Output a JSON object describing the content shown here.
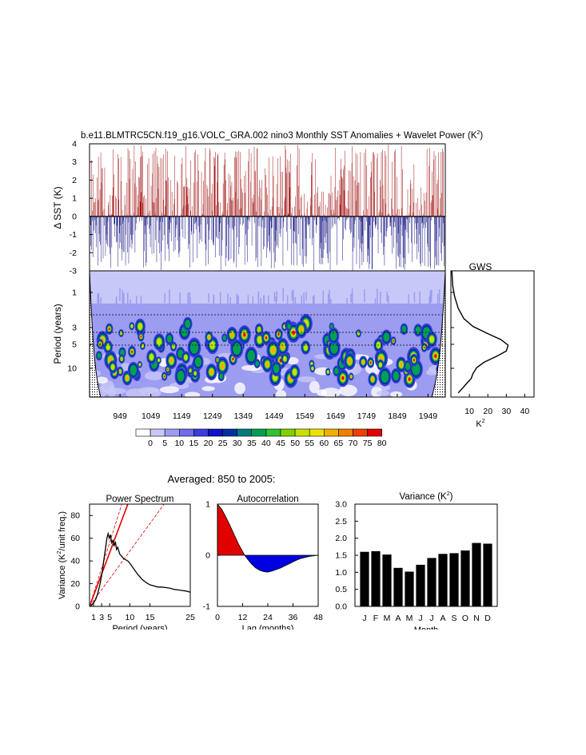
{
  "title": "b.e11.BLMTRC5CN.f19_g16.VOLC_GRA.002 nino3 Monthly SST Anomalies + Wavelet Power (K",
  "title_sup": "2",
  "title_end": ")",
  "colors": {
    "positive": "#a01010",
    "negative": "#101080",
    "spectrum_line": "#000000",
    "red_line": "#e00000",
    "bar": "#000000"
  },
  "chart_data": [
    {
      "id": "sst_anomaly",
      "type": "bar",
      "ylabel": "Δ SST (K)",
      "ylim": [
        -3,
        4
      ],
      "yticks": [
        "4",
        "3",
        "2",
        "1",
        "0",
        "-1",
        "-2",
        "-3"
      ],
      "xlim": [
        850,
        2005
      ],
      "description_values": "monthly anomalies, positive red, negative blue"
    },
    {
      "id": "wavelet",
      "type": "heatmap",
      "ylabel": "Period (years)",
      "yticks": [
        "1",
        "3",
        "5",
        "10"
      ],
      "xticks": [
        "949",
        "1049",
        "1149",
        "1249",
        "1349",
        "1449",
        "1549",
        "1649",
        "1749",
        "1849",
        "1949"
      ],
      "colorbar_labels": [
        "0",
        "5",
        "10",
        "15",
        "20",
        "25",
        "30",
        "35",
        "40",
        "45",
        "50",
        "55",
        "60",
        "65",
        "70",
        "75",
        "80"
      ],
      "colorbar_colors": [
        "#ffffff",
        "#c8c8f8",
        "#9c9cf0",
        "#6e6ee8",
        "#3c3ce0",
        "#1010c8",
        "#0030a0",
        "#007a7a",
        "#00a050",
        "#30c030",
        "#80d000",
        "#c8e000",
        "#f0e000",
        "#f0b000",
        "#f08000",
        "#f04000",
        "#e00000"
      ]
    },
    {
      "id": "gws",
      "type": "line",
      "title": "GWS",
      "xlabel": "K",
      "xlabel_sup": "2",
      "xticks": [
        "10",
        "20",
        "30",
        "40"
      ],
      "xlim": [
        0,
        45
      ],
      "x": [
        0.5,
        1,
        2,
        4,
        7,
        12,
        20,
        27,
        31,
        30,
        25,
        18,
        14,
        12,
        11,
        8,
        4
      ],
      "y_period": [
        0.5,
        0.8,
        1.1,
        1.6,
        2.2,
        2.8,
        3.5,
        4.2,
        5.0,
        6.0,
        7.0,
        8.5,
        10,
        12,
        14,
        17,
        22
      ]
    },
    {
      "id": "power_spectrum",
      "type": "line",
      "title": "Power Spectrum",
      "xlabel": "Period (years)",
      "ylabel": "Variance (K",
      "ylabel_sup": "2",
      "ylabel_end": "/unit freq.)",
      "xlim": [
        0,
        25
      ],
      "ylim": [
        0,
        90
      ],
      "xticks": [
        "1",
        "3",
        "5",
        "10",
        "15",
        "25"
      ],
      "xtick_values": [
        1,
        3,
        5,
        10,
        15,
        25
      ],
      "yticks": [
        "0",
        "20",
        "40",
        "60",
        "80"
      ],
      "series": [
        {
          "name": "spectrum",
          "x": [
            0.3,
            0.6,
            1.0,
            1.5,
            2.0,
            2.5,
            3.0,
            3.3,
            3.6,
            4.0,
            4.3,
            4.6,
            4.9,
            5.2,
            5.5,
            5.8,
            6.1,
            6.4,
            6.7,
            7.0,
            7.5,
            8.0,
            8.5,
            9.0,
            9.5,
            10,
            11,
            12,
            13,
            14,
            15,
            16,
            17,
            18,
            19,
            20,
            21,
            22,
            23,
            24,
            25
          ],
          "y": [
            0.5,
            1.5,
            3,
            6,
            11,
            18,
            27,
            34,
            42,
            52,
            60,
            64,
            60,
            63,
            56,
            58,
            53,
            57,
            50,
            52,
            46,
            44,
            42,
            41,
            40,
            38,
            33,
            28,
            24,
            21,
            19,
            18,
            17,
            17,
            16.5,
            16,
            15,
            14.5,
            14,
            13.5,
            12.5
          ]
        },
        {
          "name": "red-noise",
          "x": [
            0,
            9.5
          ],
          "y": [
            0,
            90
          ]
        },
        {
          "name": "red-noise-upper",
          "x": [
            0,
            8.0
          ],
          "y": [
            0,
            90
          ]
        },
        {
          "name": "red-noise-lower",
          "x": [
            0,
            18.5
          ],
          "y": [
            0,
            90
          ]
        }
      ]
    },
    {
      "id": "autocorrelation",
      "type": "area",
      "title": "Autocorrelation",
      "xlabel": "Lag (months)",
      "xlim": [
        0,
        48
      ],
      "ylim": [
        -1,
        1
      ],
      "xticks": [
        "0",
        "12",
        "24",
        "36",
        "48"
      ],
      "yticks": [
        "1",
        "0",
        "-1"
      ],
      "x": [
        0,
        2,
        4,
        6,
        8,
        10,
        12,
        13,
        14,
        16,
        18,
        20,
        22,
        24,
        26,
        28,
        30,
        32,
        34,
        36,
        38,
        40,
        42,
        44,
        46,
        48
      ],
      "y": [
        1.0,
        0.9,
        0.75,
        0.58,
        0.4,
        0.22,
        0.07,
        0.0,
        -0.06,
        -0.16,
        -0.24,
        -0.29,
        -0.32,
        -0.33,
        -0.31,
        -0.28,
        -0.25,
        -0.21,
        -0.17,
        -0.13,
        -0.09,
        -0.06,
        -0.04,
        -0.02,
        -0.01,
        0.0
      ]
    },
    {
      "id": "variance",
      "type": "bar",
      "title": "Variance (K",
      "title_sup": "2",
      "title_end": ")",
      "xlabel": "Month",
      "ylim": [
        0,
        3.0
      ],
      "yticks": [
        "3.0",
        "2.5",
        "2.0",
        "1.5",
        "1.0",
        "0.5",
        "0.0"
      ],
      "categories": [
        "J",
        "F",
        "M",
        "A",
        "M",
        "J",
        "J",
        "A",
        "S",
        "O",
        "N",
        "D"
      ],
      "values": [
        1.6,
        1.62,
        1.52,
        1.13,
        1.02,
        1.22,
        1.42,
        1.54,
        1.56,
        1.64,
        1.86,
        1.84
      ]
    }
  ],
  "averaged_label": "Averaged: 850 to 2005:"
}
